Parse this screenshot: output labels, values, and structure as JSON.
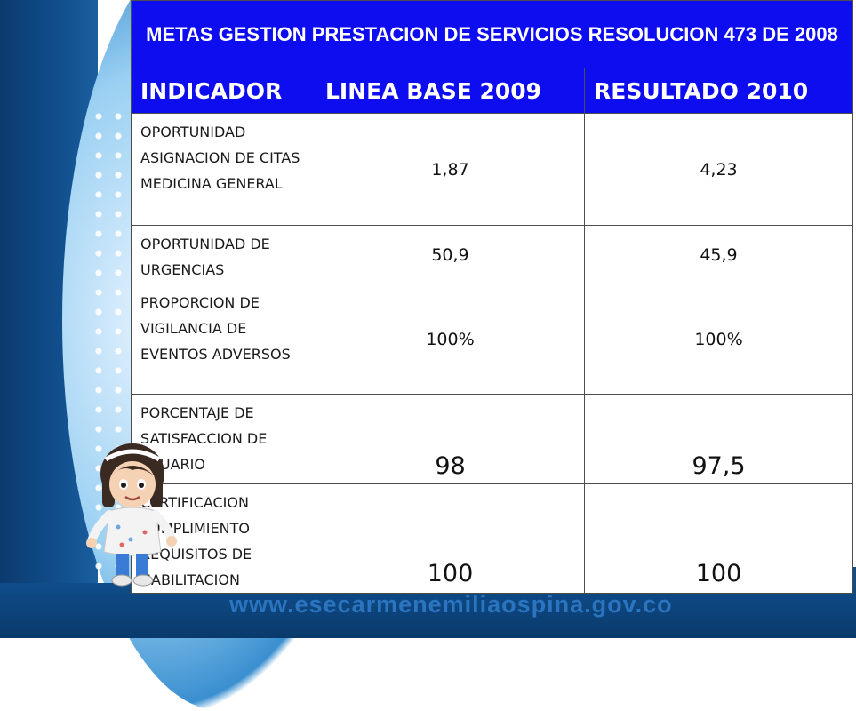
{
  "table": {
    "title": "METAS GESTION PRESTACION DE SERVICIOS  RESOLUCION 473 DE 2008",
    "headers": [
      "INDICADOR",
      "LINEA BASE 2009",
      "RESULTADO 2010"
    ],
    "rows": [
      {
        "indicador": "OPORTUNIDAD ASIGNACION DE CITAS MEDICINA GENERAL",
        "linea_base": "1,87",
        "resultado": "4,23"
      },
      {
        "indicador": "OPORTUNIDAD DE URGENCIAS",
        "linea_base": "50,9",
        "resultado": "45,9"
      },
      {
        "indicador": "PROPORCION DE VIGILANCIA DE EVENTOS ADVERSOS",
        "linea_base": "100%",
        "resultado": "100%"
      },
      {
        "indicador": "PORCENTAJE DE SATISFACCION DE USUARIO",
        "linea_base": "98",
        "resultado": "97,5"
      },
      {
        "indicador": "CERTIFICACION CUMPLIMIENTO REQUISITOS DE HABILITACION",
        "linea_base": "100",
        "resultado": "100"
      }
    ]
  },
  "footer": {
    "url": "www.esecarmenemiliaospina.gov.co"
  },
  "colors": {
    "header_blue": "#0d0df0",
    "frame_blue": "#0f4d8a"
  },
  "icons": {
    "mascot": "nurse-mascot-illustration"
  }
}
